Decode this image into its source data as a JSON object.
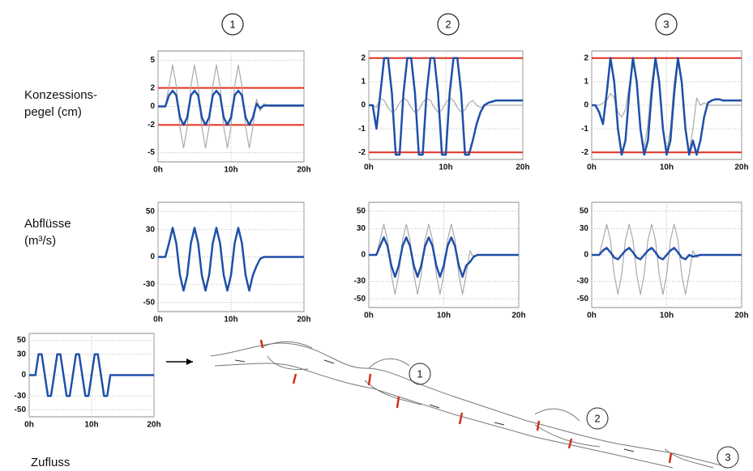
{
  "column_labels": [
    "1",
    "2",
    "3"
  ],
  "row_labels": [
    [
      "Konzessions-",
      "pegel (cm)"
    ],
    [
      "Abflüsse",
      "(m³/s)"
    ],
    [
      "Zufluss"
    ]
  ],
  "diagram_labels": [
    "1",
    "2",
    "3"
  ],
  "chart_data": [
    {
      "type": "line",
      "x": [
        0,
        0.5,
        1,
        1.5,
        2,
        2.5,
        3,
        3.5,
        4,
        4.5,
        5,
        5.5,
        6,
        6.5,
        7,
        7.5,
        8,
        8.5,
        9,
        9.5,
        10,
        10.5,
        11,
        11.5,
        12,
        12.5,
        13,
        13.5,
        14,
        14.5,
        15,
        15.5,
        16,
        16.5,
        17,
        17.5,
        18,
        18.5,
        19,
        19.5,
        20
      ],
      "xlim": [
        0,
        20
      ],
      "xticks": [
        {
          "value": 0,
          "label": "0h"
        },
        {
          "value": 10,
          "label": "10h"
        },
        {
          "value": 20,
          "label": "20h"
        }
      ],
      "ylim": [
        -6,
        6
      ],
      "yticks": [
        5,
        2,
        0,
        -2,
        -5
      ],
      "grid": true,
      "hlines": [
        2,
        -2
      ],
      "hline_color": "#e0301e",
      "series": [
        {
          "color": "#aaaaaa",
          "values": [
            0,
            0,
            0,
            2.2,
            4.5,
            2.2,
            -2.2,
            -4.5,
            -2.2,
            2.2,
            4.5,
            2.2,
            -2.2,
            -4.5,
            -2.2,
            2.2,
            4.5,
            2.2,
            -2.2,
            -4.5,
            -2.2,
            2.2,
            4.5,
            2.2,
            -2.2,
            -4.5,
            -2.2,
            0.8,
            -0.5,
            0.3,
            0.1,
            0,
            0,
            0,
            0,
            0,
            0,
            0,
            0,
            0,
            0
          ]
        },
        {
          "color": "#1f4fa8",
          "values": [
            0,
            0,
            0,
            1.2,
            1.7,
            1.2,
            -1.2,
            -2,
            -1.2,
            1.2,
            1.7,
            1.2,
            -1.2,
            -2,
            -1.2,
            1.2,
            1.7,
            1.2,
            -1.2,
            -2,
            -1.2,
            1.2,
            1.7,
            1.2,
            -1.2,
            -2,
            -1.2,
            0.3,
            -0.2,
            0.1,
            0.1,
            0.1,
            0.1,
            0.1,
            0.1,
            0.1,
            0.1,
            0.1,
            0.1,
            0.1,
            0.1
          ]
        }
      ]
    },
    {
      "type": "line",
      "x": [
        0,
        0.5,
        1,
        1.5,
        2,
        2.5,
        3,
        3.5,
        4,
        4.5,
        5,
        5.5,
        6,
        6.5,
        7,
        7.5,
        8,
        8.5,
        9,
        9.5,
        10,
        10.5,
        11,
        11.5,
        12,
        12.5,
        13,
        13.5,
        14,
        14.5,
        15,
        15.5,
        16,
        16.5,
        17,
        17.5,
        18,
        18.5,
        19,
        19.5,
        20
      ],
      "xlim": [
        0,
        20
      ],
      "xticks": [
        {
          "value": 0,
          "label": "0h"
        },
        {
          "value": 10,
          "label": "10h"
        },
        {
          "value": 20,
          "label": "20h"
        }
      ],
      "ylim": [
        -2.3,
        2.3
      ],
      "yticks": [
        2,
        1,
        0,
        -1,
        -2
      ],
      "grid": true,
      "hlines": [
        2,
        -2
      ],
      "hline_color": "#e0301e",
      "series": [
        {
          "color": "#aaaaaa",
          "values": [
            0,
            0,
            -0.1,
            0.3,
            0.2,
            -0.1,
            -0.3,
            -0.2,
            0.1,
            0.3,
            0.2,
            -0.1,
            -0.3,
            -0.2,
            0.1,
            0.3,
            0.2,
            -0.1,
            -0.3,
            -0.2,
            0.1,
            0.3,
            0.2,
            -0.1,
            -0.3,
            -0.2,
            0.1,
            0.2,
            0,
            -0.1,
            0,
            0,
            0,
            0,
            0,
            0,
            0,
            0,
            0,
            0,
            0
          ]
        },
        {
          "color": "#1f4fa8",
          "values": [
            0,
            0,
            -1,
            0.5,
            2,
            2,
            0.5,
            -2.1,
            -2.1,
            0.5,
            2,
            2,
            0.5,
            -2.1,
            -2.1,
            0.5,
            2,
            2,
            0.5,
            -2.1,
            -2.1,
            0.5,
            2,
            2,
            0.5,
            -2.1,
            -2.1,
            -1.5,
            -0.8,
            -0.3,
            0,
            0.1,
            0.15,
            0.2,
            0.2,
            0.2,
            0.2,
            0.2,
            0.2,
            0.2,
            0.2
          ]
        }
      ]
    },
    {
      "type": "line",
      "x": [
        0,
        0.5,
        1,
        1.5,
        2,
        2.5,
        3,
        3.5,
        4,
        4.5,
        5,
        5.5,
        6,
        6.5,
        7,
        7.5,
        8,
        8.5,
        9,
        9.5,
        10,
        10.5,
        11,
        11.5,
        12,
        12.5,
        13,
        13.5,
        14,
        14.5,
        15,
        15.5,
        16,
        16.5,
        17,
        17.5,
        18,
        18.5,
        19,
        19.5,
        20
      ],
      "xlim": [
        0,
        20
      ],
      "xticks": [
        {
          "value": 0,
          "label": "0h"
        },
        {
          "value": 10,
          "label": "10h"
        },
        {
          "value": 20,
          "label": "20h"
        }
      ],
      "ylim": [
        -2.3,
        2.3
      ],
      "yticks": [
        2,
        1,
        0,
        -1,
        -2
      ],
      "grid": true,
      "hlines": [
        2,
        -2
      ],
      "hline_color": "#e0301e",
      "series": [
        {
          "color": "#aaaaaa",
          "values": [
            0,
            0,
            0,
            0.1,
            0.2,
            0.5,
            0.3,
            -0.3,
            -0.5,
            -0.2,
            0.8,
            1.8,
            1,
            -1,
            -1.8,
            -0.8,
            1,
            2,
            1,
            -1,
            -2,
            -1,
            1,
            2,
            1,
            -1,
            -2,
            -1,
            0.3,
            0,
            0.1,
            0,
            0,
            0,
            0,
            0,
            0,
            0,
            0,
            0,
            0
          ]
        },
        {
          "color": "#1f4fa8",
          "values": [
            0,
            0,
            -0.3,
            -0.8,
            0.5,
            2,
            1,
            -1,
            -2.1,
            -1.5,
            0.5,
            2,
            1,
            -1,
            -2.1,
            -1.5,
            0.5,
            2,
            1,
            -1,
            -2.1,
            -1.5,
            0.5,
            2,
            1,
            -1,
            -2.1,
            -1.5,
            -2.1,
            -1.5,
            -0.5,
            0.1,
            0.2,
            0.25,
            0.25,
            0.2,
            0.2,
            0.2,
            0.2,
            0.2,
            0.2
          ]
        }
      ]
    },
    {
      "type": "line",
      "x": [
        0,
        0.5,
        1,
        1.5,
        2,
        2.5,
        3,
        3.5,
        4,
        4.5,
        5,
        5.5,
        6,
        6.5,
        7,
        7.5,
        8,
        8.5,
        9,
        9.5,
        10,
        10.5,
        11,
        11.5,
        12,
        12.5,
        13,
        13.5,
        14,
        14.5,
        15,
        15.5,
        16,
        16.5,
        17,
        17.5,
        18,
        18.5,
        19,
        19.5,
        20
      ],
      "xlim": [
        0,
        20
      ],
      "xticks": [
        {
          "value": 0,
          "label": "0h"
        },
        {
          "value": 10,
          "label": "10h"
        },
        {
          "value": 20,
          "label": "20h"
        }
      ],
      "ylim": [
        -60,
        60
      ],
      "yticks": [
        50,
        30,
        0,
        -30,
        -50
      ],
      "grid": true,
      "series": [
        {
          "color": "#1f4fa8",
          "values": [
            0,
            0,
            0,
            15,
            32,
            15,
            -20,
            -37,
            -20,
            15,
            32,
            15,
            -20,
            -37,
            -20,
            15,
            32,
            15,
            -20,
            -37,
            -20,
            15,
            32,
            15,
            -20,
            -37,
            -20,
            -10,
            -2,
            0,
            0,
            0,
            0,
            0,
            0,
            0,
            0,
            0,
            0,
            0,
            0
          ]
        }
      ]
    },
    {
      "type": "line",
      "x": [
        0,
        0.5,
        1,
        1.5,
        2,
        2.5,
        3,
        3.5,
        4,
        4.5,
        5,
        5.5,
        6,
        6.5,
        7,
        7.5,
        8,
        8.5,
        9,
        9.5,
        10,
        10.5,
        11,
        11.5,
        12,
        12.5,
        13,
        13.5,
        14,
        14.5,
        15,
        15.5,
        16,
        16.5,
        17,
        17.5,
        18,
        18.5,
        19,
        19.5,
        20
      ],
      "xlim": [
        0,
        20
      ],
      "xticks": [
        {
          "value": 0,
          "label": "0h"
        },
        {
          "value": 10,
          "label": "10h"
        },
        {
          "value": 20,
          "label": "20h"
        }
      ],
      "ylim": [
        -60,
        60
      ],
      "yticks": [
        50,
        30,
        0,
        -30,
        -50
      ],
      "grid": true,
      "series": [
        {
          "color": "#aaaaaa",
          "values": [
            0,
            0,
            0,
            17,
            35,
            17,
            -22,
            -45,
            -22,
            17,
            35,
            17,
            -22,
            -45,
            -22,
            17,
            35,
            17,
            -22,
            -45,
            -22,
            17,
            35,
            17,
            -22,
            -45,
            -22,
            5,
            -3,
            0,
            0,
            0,
            0,
            0,
            0,
            0,
            0,
            0,
            0,
            0,
            0
          ]
        },
        {
          "color": "#1f4fa8",
          "values": [
            0,
            0,
            0,
            10,
            20,
            10,
            -12,
            -25,
            -12,
            10,
            20,
            10,
            -12,
            -25,
            -12,
            10,
            20,
            10,
            -12,
            -25,
            -12,
            10,
            20,
            10,
            -12,
            -25,
            -12,
            -8,
            -2,
            0,
            0,
            0,
            0,
            0,
            0,
            0,
            0,
            0,
            0,
            0,
            0
          ]
        }
      ]
    },
    {
      "type": "line",
      "x": [
        0,
        0.5,
        1,
        1.5,
        2,
        2.5,
        3,
        3.5,
        4,
        4.5,
        5,
        5.5,
        6,
        6.5,
        7,
        7.5,
        8,
        8.5,
        9,
        9.5,
        10,
        10.5,
        11,
        11.5,
        12,
        12.5,
        13,
        13.5,
        14,
        14.5,
        15,
        15.5,
        16,
        16.5,
        17,
        17.5,
        18,
        18.5,
        19,
        19.5,
        20
      ],
      "xlim": [
        0,
        20
      ],
      "xticks": [
        {
          "value": 0,
          "label": "0h"
        },
        {
          "value": 10,
          "label": "10h"
        },
        {
          "value": 20,
          "label": "20h"
        }
      ],
      "ylim": [
        -60,
        60
      ],
      "yticks": [
        50,
        30,
        0,
        -30,
        -50
      ],
      "grid": true,
      "series": [
        {
          "color": "#aaaaaa",
          "values": [
            0,
            0,
            0,
            17,
            35,
            17,
            -22,
            -45,
            -22,
            17,
            35,
            17,
            -22,
            -45,
            -22,
            17,
            35,
            17,
            -22,
            -45,
            -22,
            17,
            35,
            17,
            -22,
            -45,
            -22,
            5,
            -3,
            0,
            0,
            0,
            0,
            0,
            0,
            0,
            0,
            0,
            0,
            0,
            0
          ]
        },
        {
          "color": "#1f4fa8",
          "values": [
            0,
            0,
            0,
            5,
            8,
            3,
            -3,
            -5,
            0,
            5,
            8,
            3,
            -3,
            -5,
            0,
            5,
            8,
            3,
            -3,
            -5,
            0,
            5,
            8,
            3,
            -3,
            -5,
            0,
            -2,
            -1,
            0,
            0,
            0,
            0,
            0,
            0,
            0,
            0,
            0,
            0,
            0,
            0
          ]
        }
      ]
    },
    {
      "type": "line",
      "x": [
        0,
        0.5,
        1,
        1.5,
        2,
        2.5,
        3,
        3.5,
        4,
        4.5,
        5,
        5.5,
        6,
        6.5,
        7,
        7.5,
        8,
        8.5,
        9,
        9.5,
        10,
        10.5,
        11,
        11.5,
        12,
        12.5,
        13,
        13.5,
        14,
        14.5,
        15,
        15.5,
        16,
        16.5,
        17,
        17.5,
        18,
        18.5,
        19,
        19.5,
        20
      ],
      "xlim": [
        0,
        20
      ],
      "xticks": [
        {
          "value": 0,
          "label": "0h"
        },
        {
          "value": 10,
          "label": "10h"
        },
        {
          "value": 20,
          "label": "20h"
        }
      ],
      "ylim": [
        -60,
        60
      ],
      "yticks": [
        50,
        30,
        0,
        -30,
        -50
      ],
      "grid": true,
      "series": [
        {
          "color": "#1f4fa8",
          "values": [
            0,
            0,
            0,
            30,
            30,
            0,
            -30,
            -30,
            0,
            30,
            30,
            0,
            -30,
            -30,
            0,
            30,
            30,
            0,
            -30,
            -30,
            0,
            30,
            30,
            0,
            -30,
            -30,
            0,
            0,
            0,
            0,
            0,
            0,
            0,
            0,
            0,
            0,
            0,
            0,
            0,
            0,
            0
          ]
        }
      ]
    }
  ]
}
